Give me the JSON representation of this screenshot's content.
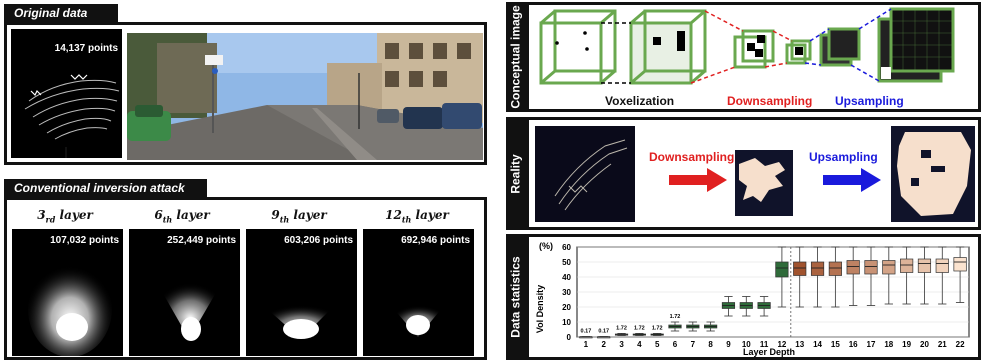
{
  "original": {
    "tag": "Original data",
    "points": "14,137 points"
  },
  "conventional": {
    "tag": "Conventional inversion attack",
    "layers": [
      {
        "base": "3",
        "sub": "rd",
        "word": " layer",
        "points": "107,032 points"
      },
      {
        "base": "6",
        "sub": "th",
        "word": " layer",
        "points": "252,449 points"
      },
      {
        "base": "9",
        "sub": "th",
        "word": " layer",
        "points": "603,206 points"
      },
      {
        "base": "12",
        "sub": "th",
        "word": " layer",
        "points": "692,946 points"
      }
    ]
  },
  "conceptual": {
    "side": "Conceptual image",
    "voxelization": "Voxelization",
    "downsampling": "Downsampling",
    "upsampling": "Upsampling"
  },
  "reality": {
    "side": "Reality",
    "downsampling": "Downsampling",
    "upsampling": "Upsampling"
  },
  "stats": {
    "side": "Data statistics"
  },
  "colors": {
    "green_edge": "#6aa84f",
    "red": "#e02020",
    "blue": "#1a1adc",
    "box_green": "#2f6b3a",
    "box_orange_dark": "#a0522d",
    "box_orange_light": "#fbe3cf",
    "slice_bg": "#f6dfcc"
  },
  "chart_data": {
    "type": "box",
    "ylabel": "Vol Density",
    "yunit": "(%)",
    "xlabel": "Layer Depth",
    "ylim": [
      0,
      60
    ],
    "yticks": [
      "0",
      "10",
      "20",
      "30",
      "40",
      "50",
      "60"
    ],
    "categories": [
      "1",
      "2",
      "3",
      "4",
      "5",
      "6",
      "7",
      "8",
      "9",
      "10",
      "11",
      "12",
      "13",
      "14",
      "15",
      "16",
      "17",
      "18",
      "19",
      "20",
      "21",
      "22"
    ],
    "annotations": [
      "0.17",
      "0.17",
      "1.72",
      "1.72",
      "1.72",
      "1.72"
    ],
    "boxes": [
      {
        "layer": "1",
        "q1": 0.17,
        "median": 0.17,
        "q3": 0.17,
        "min": 0.17,
        "max": 0.17
      },
      {
        "layer": "2",
        "q1": 0.17,
        "median": 0.17,
        "q3": 0.17,
        "min": 0.17,
        "max": 0.17
      },
      {
        "layer": "3",
        "q1": 1.5,
        "median": 1.72,
        "q3": 2.0,
        "min": 1.0,
        "max": 2.4
      },
      {
        "layer": "4",
        "q1": 1.5,
        "median": 1.72,
        "q3": 2.0,
        "min": 1.0,
        "max": 2.4
      },
      {
        "layer": "5",
        "q1": 1.5,
        "median": 1.72,
        "q3": 2.0,
        "min": 1.0,
        "max": 2.4
      },
      {
        "layer": "6",
        "q1": 6,
        "median": 7,
        "q3": 8,
        "min": 4,
        "max": 10
      },
      {
        "layer": "7",
        "q1": 6,
        "median": 7,
        "q3": 8,
        "min": 4,
        "max": 10
      },
      {
        "layer": "8",
        "q1": 6,
        "median": 7,
        "q3": 8,
        "min": 4,
        "max": 10
      },
      {
        "layer": "9",
        "q1": 19,
        "median": 21,
        "q3": 23,
        "min": 14,
        "max": 27
      },
      {
        "layer": "10",
        "q1": 19,
        "median": 21,
        "q3": 23,
        "min": 14,
        "max": 27
      },
      {
        "layer": "11",
        "q1": 19,
        "median": 21,
        "q3": 23,
        "min": 14,
        "max": 27
      },
      {
        "layer": "12",
        "q1": 40,
        "median": 46,
        "q3": 50,
        "min": 20,
        "max": 60
      },
      {
        "layer": "13",
        "q1": 41,
        "median": 46,
        "q3": 50,
        "min": 20,
        "max": 60
      },
      {
        "layer": "14",
        "q1": 41,
        "median": 46,
        "q3": 50,
        "min": 20,
        "max": 60
      },
      {
        "layer": "15",
        "q1": 41,
        "median": 46,
        "q3": 50,
        "min": 20,
        "max": 60
      },
      {
        "layer": "16",
        "q1": 42,
        "median": 47,
        "q3": 51,
        "min": 21,
        "max": 60
      },
      {
        "layer": "17",
        "q1": 42,
        "median": 47,
        "q3": 51,
        "min": 21,
        "max": 60
      },
      {
        "layer": "18",
        "q1": 42,
        "median": 48,
        "q3": 51,
        "min": 22,
        "max": 60
      },
      {
        "layer": "19",
        "q1": 43,
        "median": 48,
        "q3": 52,
        "min": 22,
        "max": 60
      },
      {
        "layer": "20",
        "q1": 43,
        "median": 49,
        "q3": 52,
        "min": 22,
        "max": 60
      },
      {
        "layer": "21",
        "q1": 43,
        "median": 49,
        "q3": 52,
        "min": 22,
        "max": 60
      },
      {
        "layer": "22",
        "q1": 44,
        "median": 50,
        "q3": 53,
        "min": 23,
        "max": 60
      }
    ],
    "divider_after": "12"
  }
}
